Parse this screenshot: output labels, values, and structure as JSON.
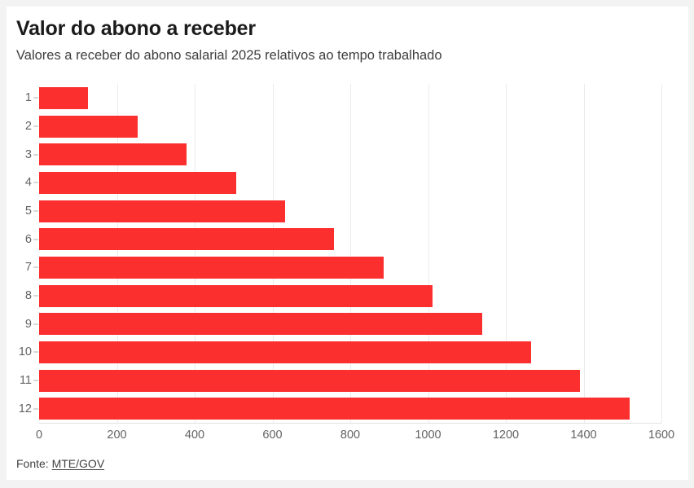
{
  "chart_data": {
    "type": "bar",
    "orientation": "horizontal",
    "title": "Valor do abono a receber",
    "subtitle": "Valores a receber do abono salarial 2025 relativos ao tempo trabalhado",
    "categories": [
      "1",
      "2",
      "3",
      "4",
      "5",
      "6",
      "7",
      "8",
      "9",
      "10",
      "11",
      "12"
    ],
    "values": [
      126.5,
      253,
      379.5,
      506,
      632.5,
      759,
      885.5,
      1012,
      1138.5,
      1265,
      1391.5,
      1518
    ],
    "xlabel": "",
    "ylabel": "",
    "xlim": [
      0,
      1600
    ],
    "x_ticks": [
      0,
      200,
      400,
      600,
      800,
      1000,
      1200,
      1400,
      1600
    ],
    "grid": true,
    "legend": false,
    "source_prefix": "Fonte: ",
    "source_link_text": "MTE/GOV"
  },
  "colors": {
    "bar": "#fc2f2f",
    "page_background": "#f3f3f4",
    "card_background": "#ffffff",
    "gridline": "#ebebeb",
    "baseline": "#e3e3e3",
    "y_tick": "#d8d8d8",
    "axis_label": "#636363",
    "title": "#1b1b1b",
    "subtitle": "#3e3e3e",
    "source": "#414141"
  }
}
